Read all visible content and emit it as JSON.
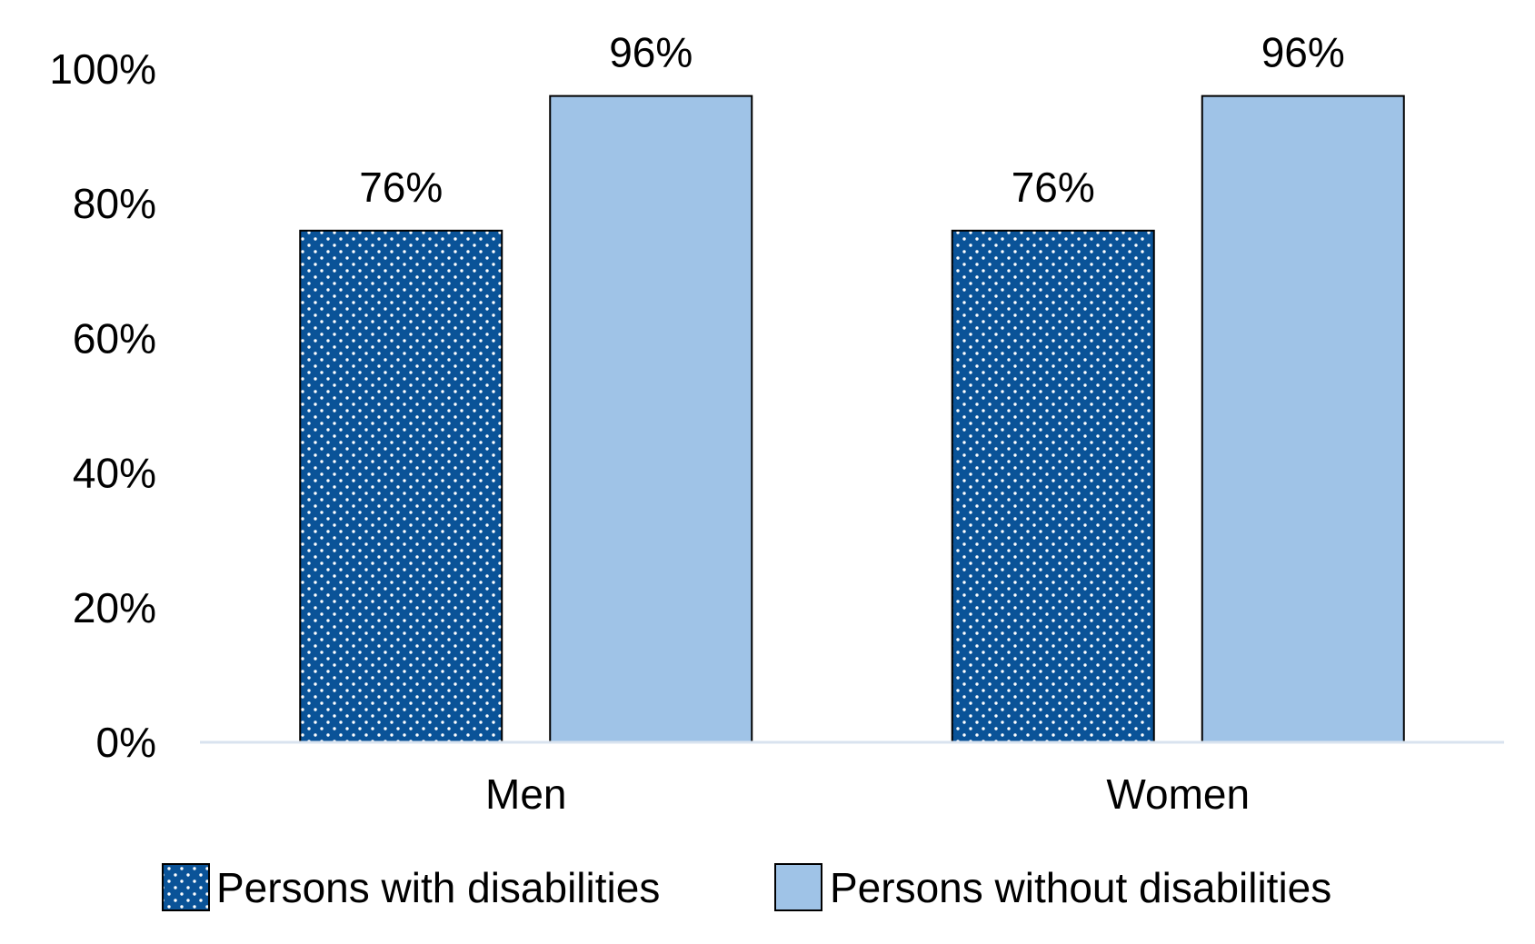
{
  "chart_data": {
    "type": "bar",
    "title": "",
    "xlabel": "",
    "ylabel": "",
    "categories": [
      "Men",
      "Women"
    ],
    "series": [
      {
        "name": "Persons with disabilities",
        "values": [
          76,
          76
        ],
        "labels": [
          "76%",
          "76%"
        ],
        "color": "#0a5398",
        "pattern": "dots"
      },
      {
        "name": "Persons without disabilities",
        "values": [
          96,
          96
        ],
        "labels": [
          "96%",
          "96%"
        ],
        "color": "#9fc3e7",
        "pattern": "solid"
      }
    ],
    "ylim": [
      0,
      100
    ],
    "yticks": [
      0,
      20,
      40,
      60,
      80,
      100
    ],
    "ytick_labels": [
      "0%",
      "20%",
      "40%",
      "60%",
      "80%",
      "100%"
    ],
    "grid": false,
    "legend": "bottom",
    "axis_color": "#d9e3ef",
    "edge_color": "#000000"
  }
}
